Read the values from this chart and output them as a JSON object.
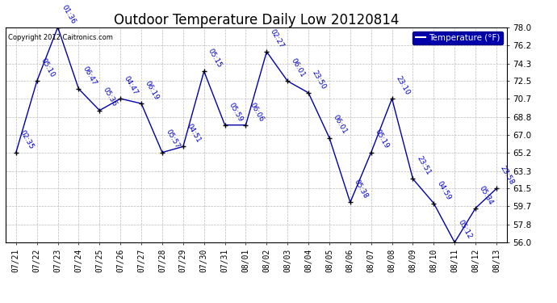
{
  "title": "Outdoor Temperature Daily Low 20120814",
  "legend_label": "Temperature (°F)",
  "copyright": "Copyright 2012 Caitronics.com",
  "dates": [
    "07/21",
    "07/22",
    "07/23",
    "07/24",
    "07/25",
    "07/26",
    "07/27",
    "07/28",
    "07/29",
    "07/30",
    "07/31",
    "08/01",
    "08/02",
    "08/03",
    "08/04",
    "08/05",
    "08/06",
    "08/07",
    "08/08",
    "08/09",
    "08/10",
    "08/11",
    "08/12",
    "08/13"
  ],
  "values": [
    65.2,
    72.5,
    78.0,
    71.7,
    69.5,
    70.7,
    70.2,
    65.2,
    65.8,
    73.5,
    68.0,
    68.0,
    75.5,
    72.5,
    71.3,
    66.7,
    60.1,
    65.2,
    70.7,
    62.5,
    60.0,
    56.0,
    59.5,
    61.5
  ],
  "time_labels": [
    "02:35",
    "05:10",
    "01:36",
    "06:47",
    "05:36",
    "04:47",
    "06:19",
    "05:57",
    "04:51",
    "05:15",
    "05:59",
    "06:06",
    "02:27",
    "06:01",
    "23:50",
    "06:01",
    "05:38",
    "05:19",
    "23:10",
    "23:51",
    "04:59",
    "05:12",
    "05:34",
    "23:58"
  ],
  "ylim": [
    56.0,
    78.0
  ],
  "yticks": [
    56.0,
    57.8,
    59.7,
    61.5,
    63.3,
    65.2,
    67.0,
    68.8,
    70.7,
    72.5,
    74.3,
    76.2,
    78.0
  ],
  "line_color": "#0000aa",
  "marker_color": "#000000",
  "label_color": "#0000cc",
  "bg_color": "#ffffff",
  "grid_color": "#bbbbbb",
  "title_fontsize": 12,
  "tick_fontsize": 7,
  "annot_fontsize": 6.5,
  "legend_bg": "#0000aa",
  "legend_fg": "#ffffff"
}
